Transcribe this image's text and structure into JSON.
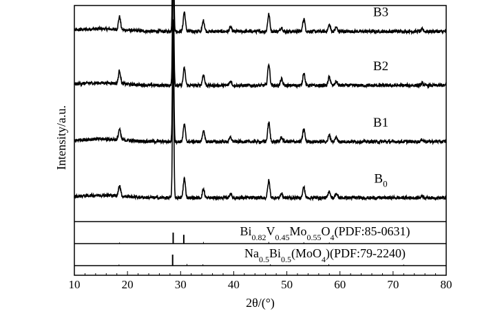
{
  "chart_data": {
    "type": "line",
    "xlabel": "2θ/(°)",
    "ylabel": "Intensity/a.u.",
    "xlim": [
      10,
      80
    ],
    "x_ticks": [
      10,
      20,
      30,
      40,
      50,
      60,
      70,
      80
    ],
    "series": [
      {
        "name": "B3",
        "baseline": 0.88,
        "noise": 0.015,
        "peaks": [
          {
            "x": 18.5,
            "h": 0.06
          },
          {
            "x": 28.6,
            "h": 0.53
          },
          {
            "x": 30.7,
            "h": 0.09
          },
          {
            "x": 34.3,
            "h": 0.05
          },
          {
            "x": 39.4,
            "h": 0.02
          },
          {
            "x": 46.6,
            "h": 0.08
          },
          {
            "x": 49.0,
            "h": 0.02
          },
          {
            "x": 53.2,
            "h": 0.06
          },
          {
            "x": 58.0,
            "h": 0.03
          },
          {
            "x": 59.3,
            "h": 0.02
          },
          {
            "x": 75.5,
            "h": 0.01
          }
        ]
      },
      {
        "name": "B2",
        "baseline": 0.63,
        "noise": 0.015,
        "peaks": [
          {
            "x": 18.5,
            "h": 0.06
          },
          {
            "x": 28.6,
            "h": 0.56
          },
          {
            "x": 30.7,
            "h": 0.08
          },
          {
            "x": 34.3,
            "h": 0.05
          },
          {
            "x": 39.4,
            "h": 0.02
          },
          {
            "x": 46.6,
            "h": 0.1
          },
          {
            "x": 49.0,
            "h": 0.03
          },
          {
            "x": 53.2,
            "h": 0.06
          },
          {
            "x": 58.0,
            "h": 0.04
          },
          {
            "x": 59.3,
            "h": 0.02
          },
          {
            "x": 75.5,
            "h": 0.01
          }
        ]
      },
      {
        "name": "B1",
        "baseline": 0.37,
        "noise": 0.015,
        "peaks": [
          {
            "x": 18.5,
            "h": 0.05
          },
          {
            "x": 28.6,
            "h": 0.57
          },
          {
            "x": 30.7,
            "h": 0.08
          },
          {
            "x": 34.3,
            "h": 0.05
          },
          {
            "x": 39.4,
            "h": 0.02
          },
          {
            "x": 46.6,
            "h": 0.09
          },
          {
            "x": 49.0,
            "h": 0.02
          },
          {
            "x": 53.2,
            "h": 0.06
          },
          {
            "x": 58.0,
            "h": 0.03
          },
          {
            "x": 59.3,
            "h": 0.02
          },
          {
            "x": 75.5,
            "h": 0.01
          }
        ]
      },
      {
        "name": "B",
        "name_subscript": "0",
        "baseline": 0.11,
        "noise": 0.015,
        "peaks": [
          {
            "x": 18.5,
            "h": 0.05
          },
          {
            "x": 28.6,
            "h": 0.67
          },
          {
            "x": 30.7,
            "h": 0.09
          },
          {
            "x": 34.3,
            "h": 0.04
          },
          {
            "x": 39.4,
            "h": 0.02
          },
          {
            "x": 46.6,
            "h": 0.08
          },
          {
            "x": 49.0,
            "h": 0.02
          },
          {
            "x": 53.2,
            "h": 0.05
          },
          {
            "x": 58.0,
            "h": 0.03
          },
          {
            "x": 59.3,
            "h": 0.02
          },
          {
            "x": 75.5,
            "h": 0.01
          }
        ]
      }
    ],
    "references": [
      {
        "label_parts": [
          [
            "Bi",
            false
          ],
          [
            "0.82",
            true
          ],
          [
            "V",
            false
          ],
          [
            "0.45",
            true
          ],
          [
            "Mo",
            false
          ],
          [
            "0.55",
            true
          ],
          [
            "O",
            false
          ],
          [
            "4",
            true
          ],
          [
            "(PDF:85-0631)",
            false
          ]
        ],
        "lines": [
          {
            "x": 18.5,
            "h": 0.1
          },
          {
            "x": 28.6,
            "h": 1.0
          },
          {
            "x": 30.6,
            "h": 0.8
          },
          {
            "x": 34.3,
            "h": 0.15
          },
          {
            "x": 46.6,
            "h": 0.15
          },
          {
            "x": 53.2,
            "h": 0.12
          },
          {
            "x": 58.0,
            "h": 0.1
          }
        ]
      },
      {
        "label_parts": [
          [
            "Na",
            false
          ],
          [
            "0.5",
            true
          ],
          [
            "Bi",
            false
          ],
          [
            "0.5",
            true
          ],
          [
            "(MoO",
            false
          ],
          [
            "4",
            true
          ],
          [
            ")(PDF:79-2240)",
            false
          ]
        ],
        "lines": [
          {
            "x": 18.4,
            "h": 0.1
          },
          {
            "x": 28.5,
            "h": 1.0
          },
          {
            "x": 31.2,
            "h": 0.15
          },
          {
            "x": 34.2,
            "h": 0.12
          },
          {
            "x": 46.9,
            "h": 0.12
          },
          {
            "x": 57.9,
            "h": 0.12
          },
          {
            "x": 72.0,
            "h": 0.1
          }
        ]
      }
    ]
  }
}
